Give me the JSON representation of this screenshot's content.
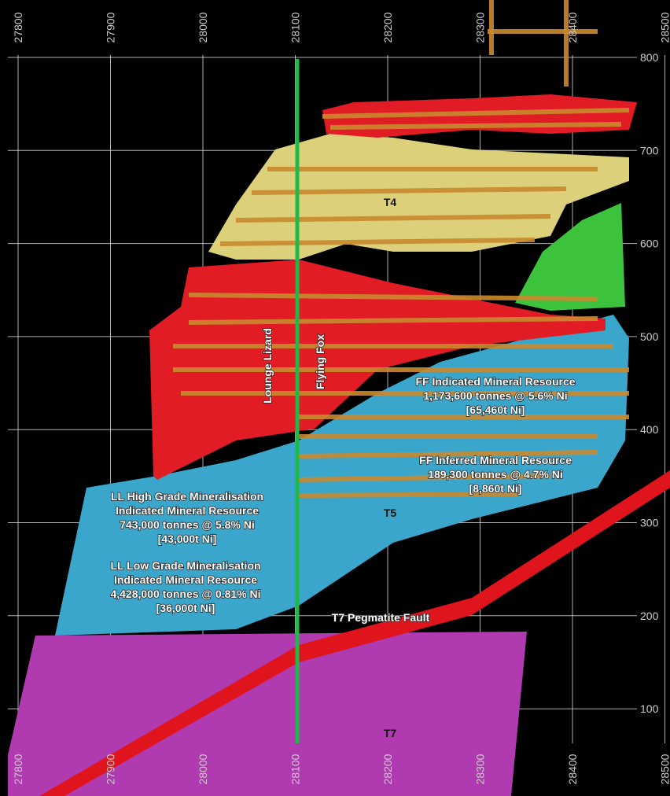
{
  "axes": {
    "x_labels": [
      27800,
      27900,
      28000,
      28100,
      28200,
      28300,
      28400,
      28500
    ],
    "y_labels": [
      800,
      700,
      600,
      500,
      400,
      300,
      200,
      100
    ]
  },
  "lenses": {
    "lounge_lizard": "Lounge Lizard",
    "flying_fox": "Flying Fox",
    "t4": "T4",
    "t5": "T5",
    "t7": "T7",
    "fault": "T7 Pegmatite Fault"
  },
  "resources": [
    {
      "lines": [
        "FF  Indicated Mineral Resource",
        "1,173,600 tonnes @ 5.6% Ni",
        "[65,460t Ni]"
      ]
    },
    {
      "lines": [
        "FF  Inferred Mineral Resource",
        "189,300 tonnes @ 4.7% Ni",
        "[8,860t Ni]"
      ]
    },
    {
      "lines": [
        "LL  High Grade Mineralisation",
        "Indicated Mineral Resource",
        "743,000 tonnes @ 5.8% Ni",
        "[43,000t Ni]"
      ]
    },
    {
      "lines": [
        "LL  Low Grade Mineralisation",
        "Indicated Mineral Resource",
        "4,428,000 tonnes @ 0.81% Ni",
        "[36,000t Ni]"
      ]
    }
  ]
}
